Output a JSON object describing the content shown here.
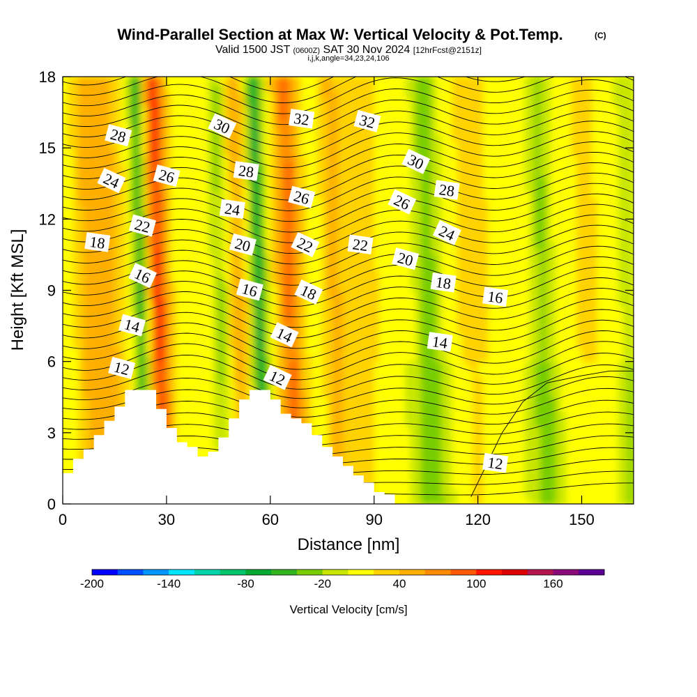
{
  "header": {
    "title_main": "Wind-Parallel Section at Max W: Vertical Velocity & Pot.Temp.",
    "title_mark": "(C)",
    "valid_a": "Valid 1500 JST ",
    "valid_b": "(0600Z)",
    "valid_c": " SAT 30 Nov 2024 ",
    "valid_d": "[12hrFcst@2151z]",
    "indices": "i,j,k,angle=34,23,24,106"
  },
  "colors": {
    "terrain": "#ffffff",
    "contour": "#000000",
    "colorbar": [
      "#0000ff",
      "#0050ff",
      "#0096ff",
      "#00e6ff",
      "#00d2aa",
      "#00c36e",
      "#00aa32",
      "#32b41e",
      "#78cd00",
      "#c8e600",
      "#ffff00",
      "#ffd200",
      "#ffaf00",
      "#ff8c00",
      "#ff5a00",
      "#ff1400",
      "#dc0000",
      "#b41450",
      "#8c0a78",
      "#5a0096"
    ]
  },
  "chart_data": {
    "type": "heatmap",
    "xlabel": "Distance [nm]",
    "ylabel": "Height [Kft MSL]",
    "xlim": [
      0,
      165
    ],
    "ylim": [
      0,
      18
    ],
    "xticks": [
      "0",
      "30",
      "60",
      "90",
      "120",
      "150"
    ],
    "yticks": [
      "0",
      "3",
      "6",
      "9",
      "12",
      "15",
      "18"
    ],
    "colorbar": {
      "label": "Vertical Velocity [cm/s]",
      "min": -200,
      "max": 200,
      "step": 20,
      "tick_labels": [
        "-200",
        "-140",
        "-80",
        "-20",
        "40",
        "100",
        "160"
      ]
    },
    "terrain_profile": {
      "x": [
        0,
        3,
        6,
        9,
        12,
        15,
        18,
        21,
        24,
        27,
        30,
        33,
        36,
        39,
        42,
        45,
        48,
        51,
        54,
        57,
        60,
        63,
        66,
        69,
        72,
        75,
        78,
        81,
        84,
        87,
        90,
        93
      ],
      "top_kft": [
        1.3,
        1.9,
        2.3,
        2.9,
        3.5,
        4.1,
        4.8,
        4.8,
        4.8,
        4.0,
        3.2,
        2.6,
        2.4,
        2.0,
        2.2,
        2.8,
        3.6,
        4.4,
        4.8,
        4.8,
        4.4,
        3.8,
        3.6,
        3.4,
        2.9,
        2.4,
        2.0,
        1.6,
        1.2,
        0.9,
        0.5,
        0.4
      ]
    },
    "contour_labels": [
      {
        "text": "28",
        "x": 16,
        "y": 15.5
      },
      {
        "text": "30",
        "x": 46,
        "y": 15.9
      },
      {
        "text": "32",
        "x": 69,
        "y": 16.2
      },
      {
        "text": "32",
        "x": 88,
        "y": 16.1
      },
      {
        "text": "30",
        "x": 102,
        "y": 14.4
      },
      {
        "text": "28",
        "x": 53,
        "y": 14.0
      },
      {
        "text": "26",
        "x": 30,
        "y": 13.8
      },
      {
        "text": "24",
        "x": 14,
        "y": 13.6
      },
      {
        "text": "28",
        "x": 111,
        "y": 13.2
      },
      {
        "text": "26",
        "x": 69,
        "y": 12.9
      },
      {
        "text": "26",
        "x": 98,
        "y": 12.7
      },
      {
        "text": "24",
        "x": 49,
        "y": 12.4
      },
      {
        "text": "22",
        "x": 23,
        "y": 11.7
      },
      {
        "text": "24",
        "x": 111,
        "y": 11.4
      },
      {
        "text": "18",
        "x": 10,
        "y": 11.0
      },
      {
        "text": "20",
        "x": 52,
        "y": 10.9
      },
      {
        "text": "22",
        "x": 70,
        "y": 10.9
      },
      {
        "text": "22",
        "x": 86,
        "y": 10.9
      },
      {
        "text": "20",
        "x": 99,
        "y": 10.3
      },
      {
        "text": "16",
        "x": 23,
        "y": 9.6
      },
      {
        "text": "18",
        "x": 110,
        "y": 9.3
      },
      {
        "text": "16",
        "x": 54,
        "y": 9.0
      },
      {
        "text": "18",
        "x": 71,
        "y": 8.9
      },
      {
        "text": "16",
        "x": 125,
        "y": 8.7
      },
      {
        "text": "14",
        "x": 20,
        "y": 7.5
      },
      {
        "text": "14",
        "x": 64,
        "y": 7.1
      },
      {
        "text": "14",
        "x": 109,
        "y": 6.8
      },
      {
        "text": "12",
        "x": 17,
        "y": 5.7
      },
      {
        "text": "12",
        "x": 62,
        "y": 5.3
      },
      {
        "text": "12",
        "x": 125,
        "y": 1.7
      }
    ]
  }
}
